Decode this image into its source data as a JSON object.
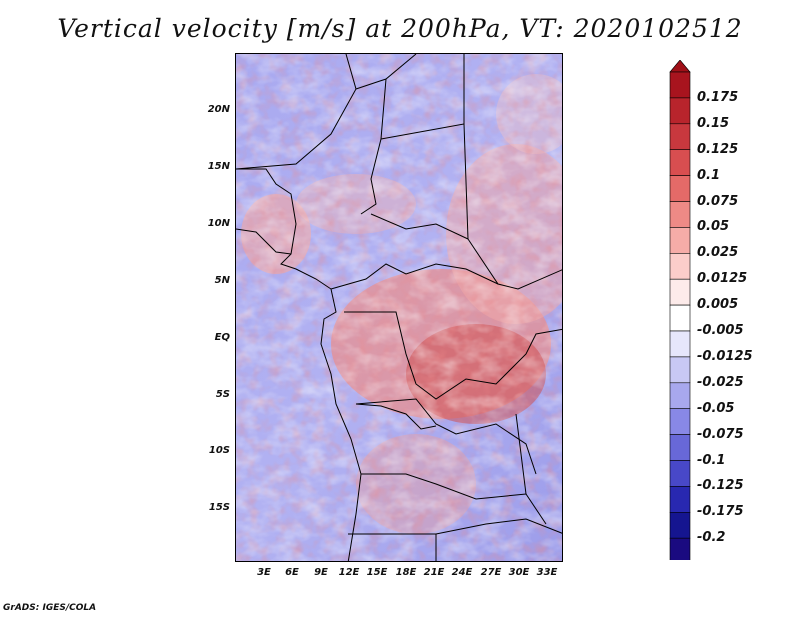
{
  "title": "Vertical velocity [m/s] at 200hPa, VT: 2020102512",
  "credit": "GrADS: IGES/COLA",
  "map": {
    "lat_labels": [
      "20N",
      "15N",
      "10N",
      "5N",
      "EQ",
      "5S",
      "10S",
      "15S"
    ],
    "lon_labels": [
      "3E",
      "6E",
      "9E",
      "12E",
      "15E",
      "18E",
      "21E",
      "24E",
      "27E",
      "30E",
      "33E"
    ]
  },
  "colorbar": {
    "labels": [
      "0.175",
      "0.15",
      "0.125",
      "0.1",
      "0.075",
      "0.05",
      "0.025",
      "0.0125",
      "0.005",
      "-0.005",
      "-0.0125",
      "-0.025",
      "-0.05",
      "-0.075",
      "-0.1",
      "-0.125",
      "-0.175",
      "-0.2"
    ],
    "colors": [
      "#a8141e",
      "#b8242c",
      "#c8383e",
      "#d84e50",
      "#e46a68",
      "#ee8a86",
      "#f6aca8",
      "#fbcdca",
      "#fdebea",
      "#ffffff",
      "#e6e6fb",
      "#c8c8f4",
      "#a8a8ee",
      "#8888e6",
      "#6868d8",
      "#4848c8",
      "#2828b0",
      "#151590",
      "#1a0a80"
    ],
    "over_color": "#a01018",
    "under_color": "#1a0a80"
  }
}
